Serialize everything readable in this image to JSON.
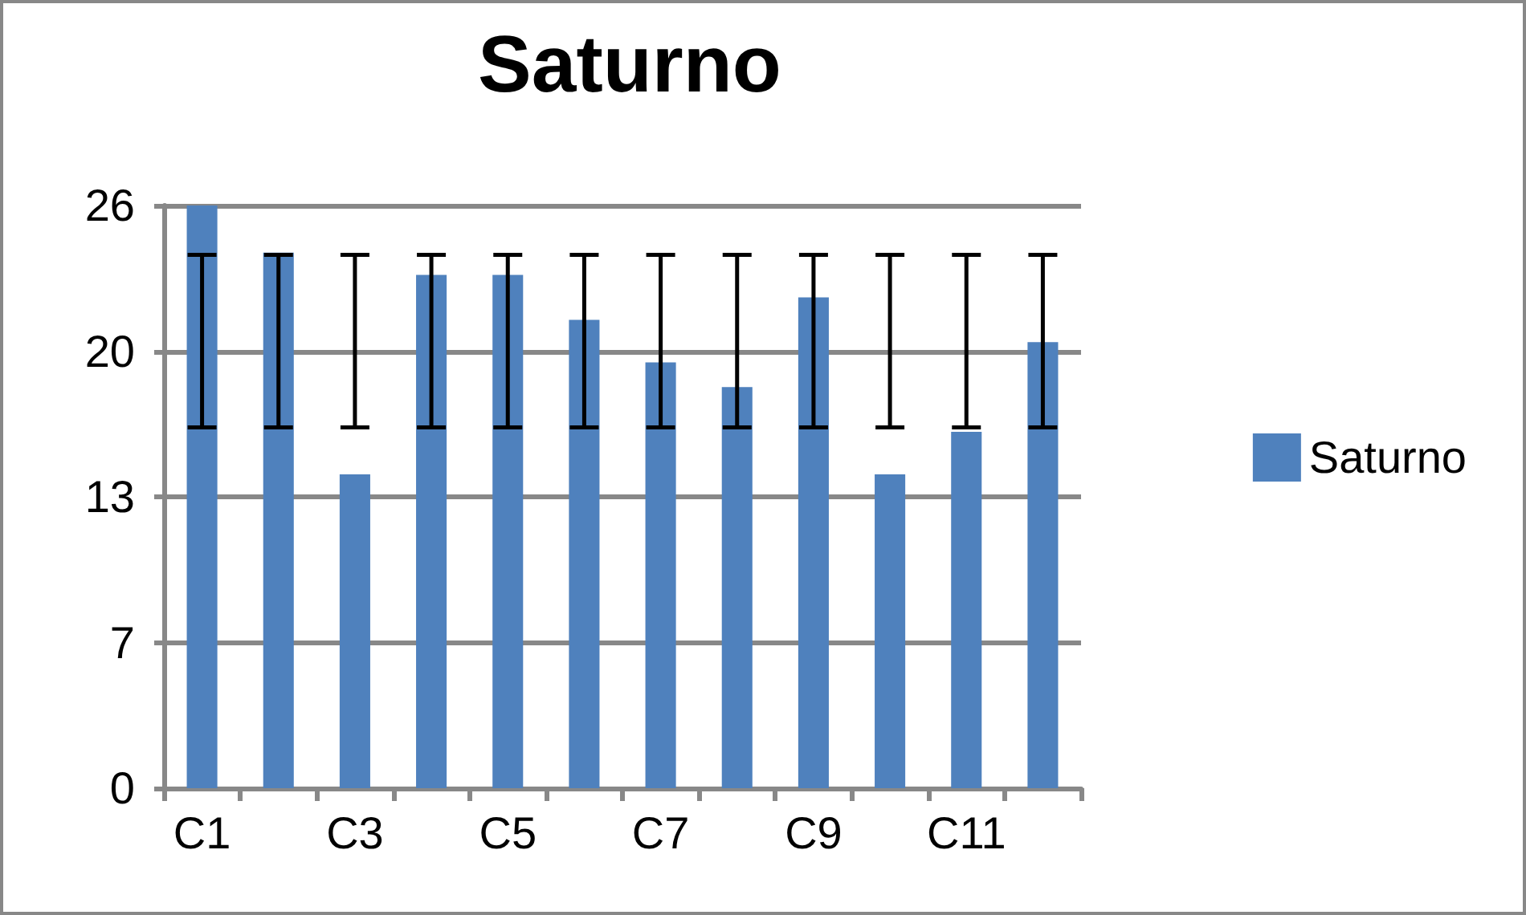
{
  "chart_data": {
    "type": "bar",
    "title": "Saturno",
    "categories": [
      "C1",
      null,
      "C3",
      null,
      "C5",
      null,
      "C7",
      null,
      "C9",
      null,
      "C11",
      null
    ],
    "series": [
      {
        "name": "Saturno",
        "color": "#4f81bd",
        "values": [
          26,
          23.9,
          14,
          22.9,
          22.9,
          20.9,
          19,
          17.9,
          21.9,
          14,
          15.9,
          19.9
        ],
        "errors": [
          [
            16.1,
            23.8
          ],
          [
            16.1,
            23.8
          ],
          [
            16.1,
            23.8
          ],
          [
            16.1,
            23.8
          ],
          [
            16.1,
            23.8
          ],
          [
            16.1,
            23.8
          ],
          [
            16.1,
            23.8
          ],
          [
            16.1,
            23.8
          ],
          [
            16.1,
            23.8
          ],
          [
            16.1,
            23.8
          ],
          [
            16.1,
            23.8
          ],
          [
            16.1,
            23.8
          ]
        ]
      }
    ],
    "ylim": [
      0,
      26
    ],
    "yticks": [
      0,
      {
        "value": 6.5,
        "label": "7"
      },
      13,
      {
        "value": 19.5,
        "label": "20"
      },
      26
    ],
    "grid": "y",
    "legend": "right"
  }
}
